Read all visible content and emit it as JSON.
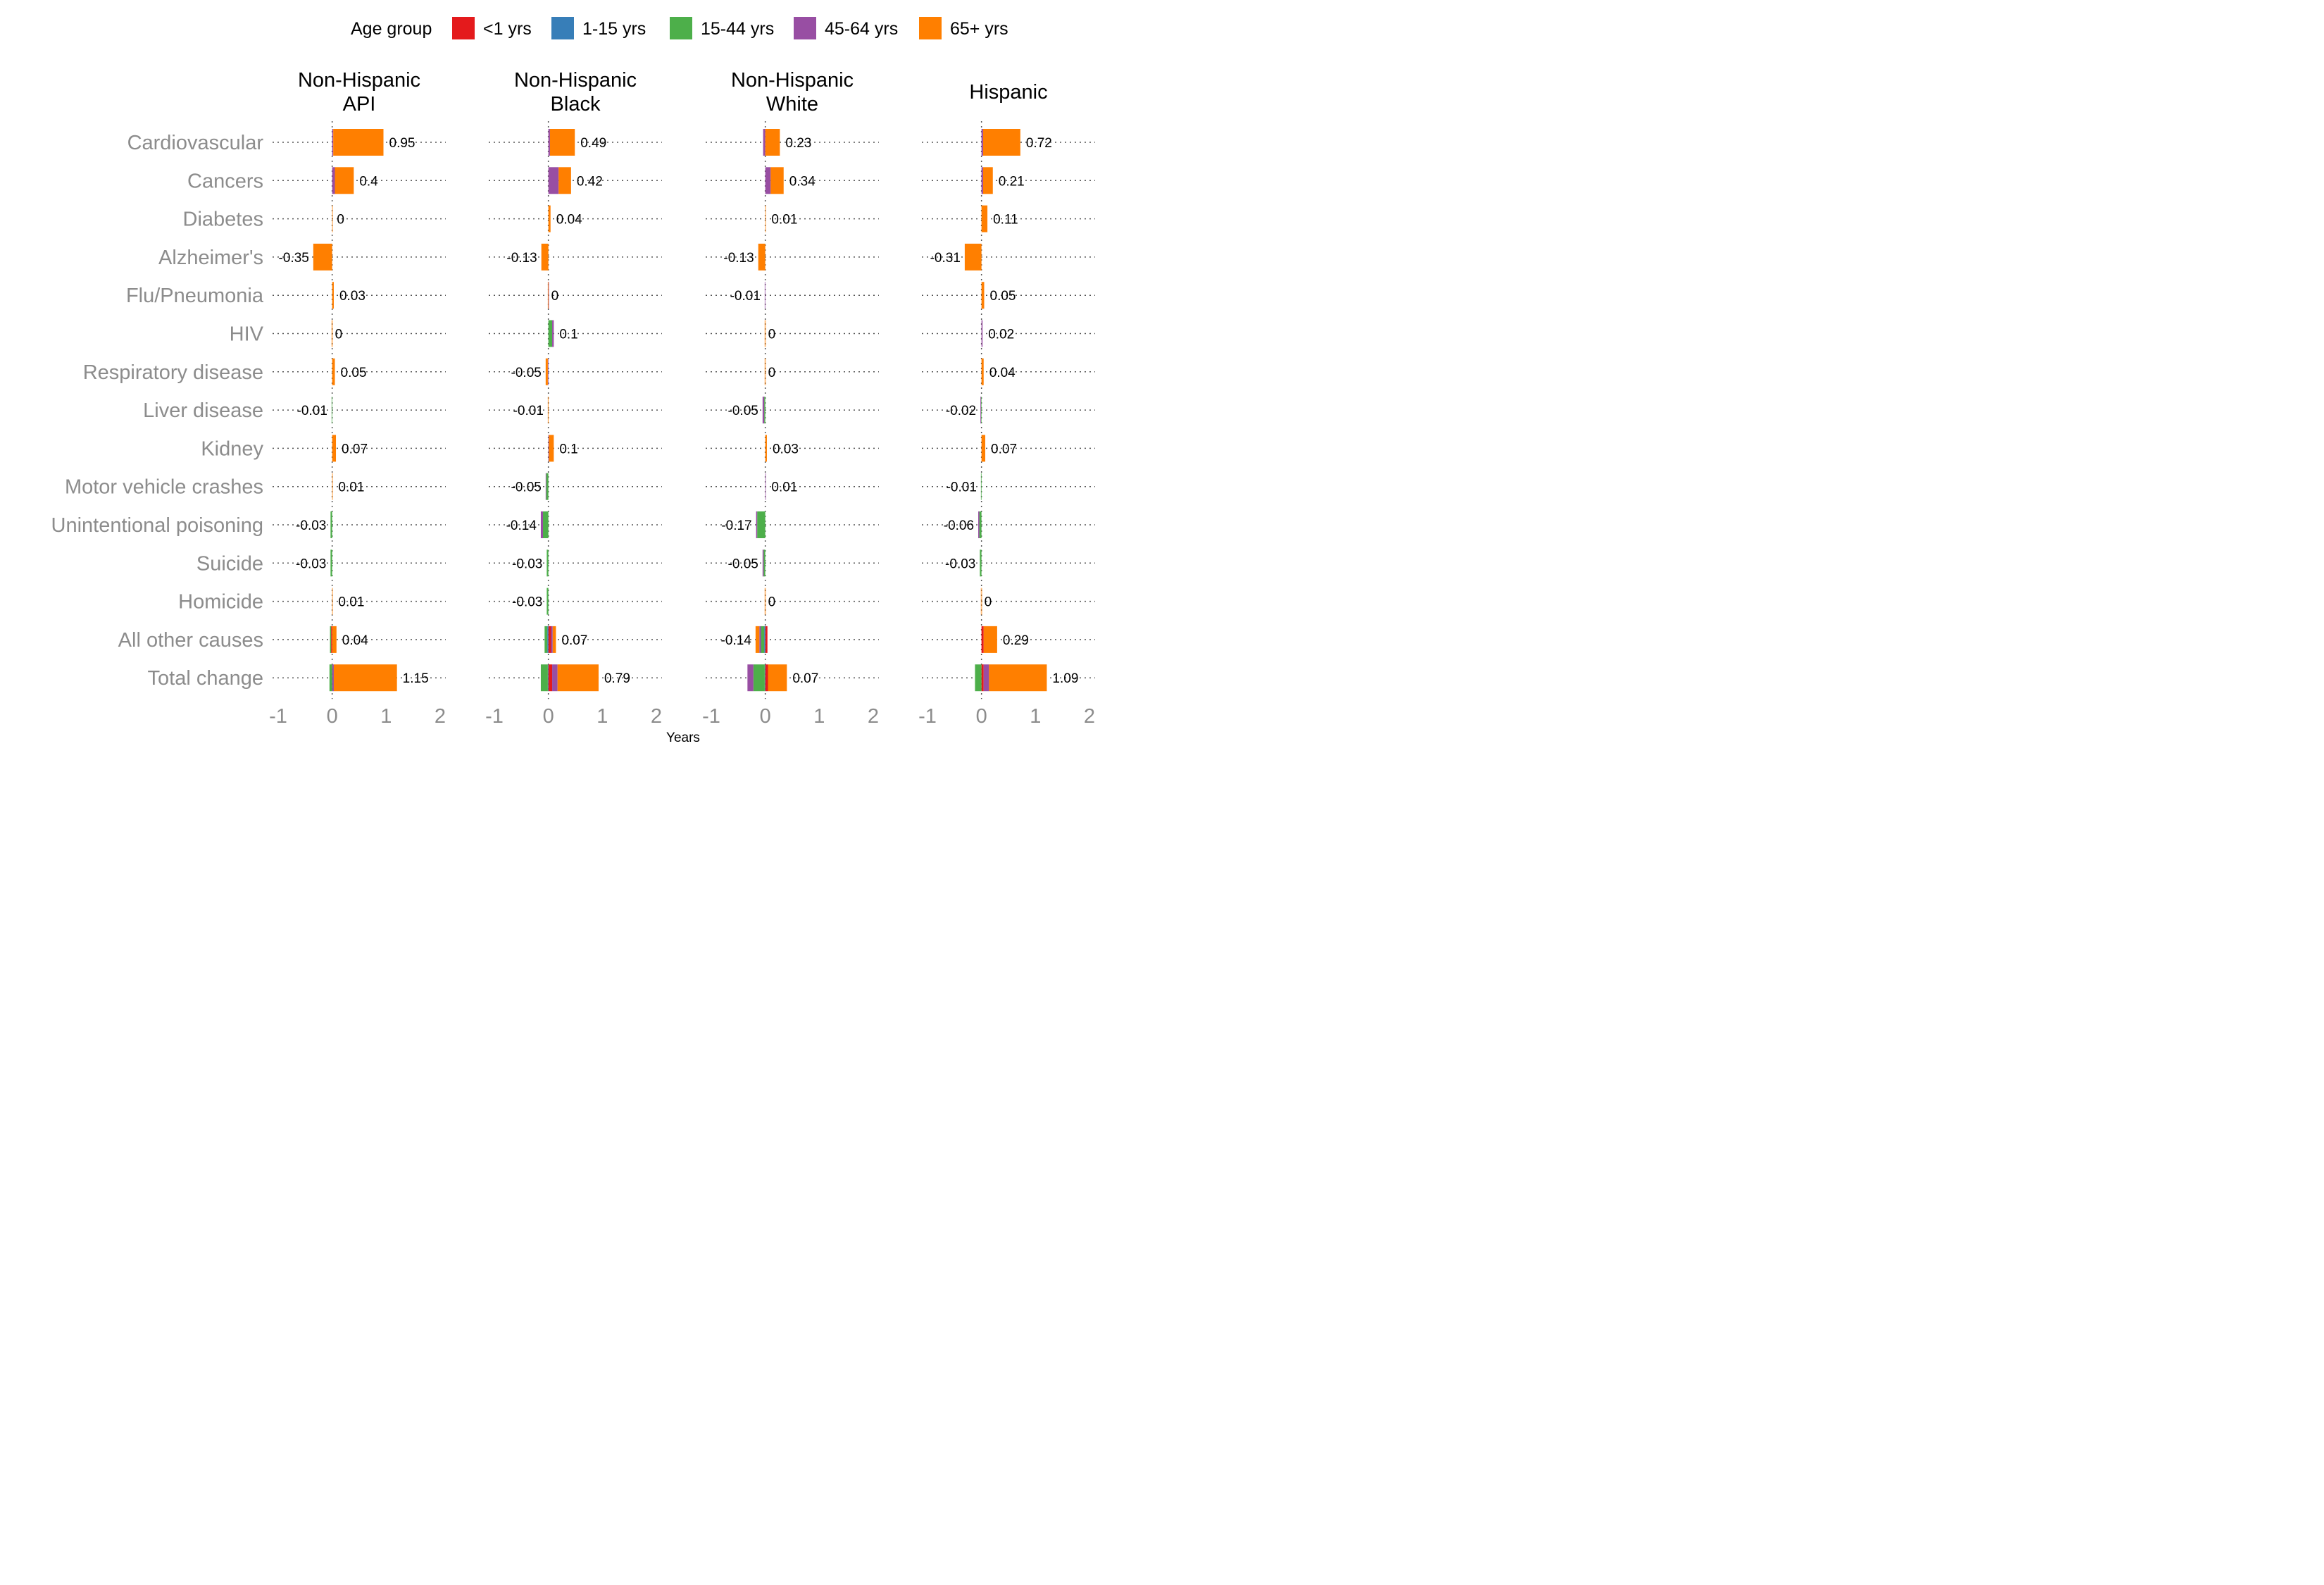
{
  "chart_data": {
    "type": "bar",
    "orientation": "horizontal",
    "stacked": true,
    "xlabel": "Years",
    "xlim": [
      -1,
      2
    ],
    "xticks": [
      -1,
      0,
      1,
      2
    ],
    "xtick_labels": [
      "-1",
      "0",
      "1",
      "2"
    ],
    "grid": "horizontal dotted gridlines at each category",
    "legend": {
      "title": "Age group",
      "position": "top",
      "entries": [
        {
          "label": "<1 yrs",
          "color": "#e41a1c"
        },
        {
          "label": "1-15 yrs",
          "color": "#377eb8"
        },
        {
          "label": "15-44 yrs",
          "color": "#4daf4a"
        },
        {
          "label": "45-64 yrs",
          "color": "#984ea3"
        },
        {
          "label": "65+ yrs",
          "color": "#ff7f00"
        }
      ]
    },
    "categories": [
      "Cardiovascular",
      "Cancers",
      "Diabetes",
      "Alzheimer's",
      "Flu/Pneumonia",
      "HIV",
      "Respiratory disease",
      "Liver disease",
      "Kidney",
      "Motor vehicle crashes",
      "Unintentional poisoning",
      "Suicide",
      "Homicide",
      "All other causes",
      "Total change"
    ],
    "facets": [
      {
        "title_lines": [
          "Non-Hispanic",
          "API"
        ],
        "totals": [
          0.95,
          0.4,
          0,
          -0.35,
          0.03,
          0,
          0.05,
          -0.01,
          0.07,
          0.01,
          -0.03,
          -0.03,
          0.01,
          0.04,
          1.15
        ],
        "total_labels": [
          "0.95",
          "0.4",
          "0",
          "-0.35",
          "0.03",
          "0",
          "0.05",
          "-0.01",
          "0.07",
          "0.01",
          "-0.03",
          "-0.03",
          "0.01",
          "0.04",
          "1.15"
        ],
        "segments": [
          [
            0,
            0,
            0,
            0.02,
            0.93
          ],
          [
            0,
            0,
            0,
            0.05,
            0.35
          ],
          [
            0,
            0,
            0,
            0,
            0.01
          ],
          [
            0,
            0,
            0,
            0,
            -0.35
          ],
          [
            0,
            0,
            0,
            0,
            0.03
          ],
          [
            0,
            0,
            0,
            0,
            0
          ],
          [
            0,
            0,
            0,
            0,
            0.05
          ],
          [
            0,
            0,
            -0.01,
            0,
            0
          ],
          [
            0,
            0,
            0,
            0,
            0.07
          ],
          [
            0,
            0,
            0,
            0,
            0.01
          ],
          [
            0,
            0,
            -0.03,
            0,
            0
          ],
          [
            0,
            0,
            -0.03,
            0,
            0
          ],
          [
            0,
            0,
            0,
            0,
            0.01
          ],
          [
            -0.02,
            0,
            -0.02,
            0,
            0.08
          ],
          [
            0,
            0,
            -0.05,
            0.03,
            1.17
          ]
        ]
      },
      {
        "title_lines": [
          "Non-Hispanic",
          "Black"
        ],
        "totals": [
          0.49,
          0.42,
          0.04,
          -0.13,
          0,
          0.1,
          -0.05,
          -0.01,
          0.1,
          -0.05,
          -0.14,
          -0.03,
          -0.03,
          0.07,
          0.79
        ],
        "total_labels": [
          "0.49",
          "0.42",
          "0.04",
          "-0.13",
          "0",
          "0.1",
          "-0.05",
          "-0.01",
          "0.1",
          "-0.05",
          "-0.14",
          "-0.03",
          "-0.03",
          "0.07",
          "0.79"
        ],
        "segments": [
          [
            0,
            0,
            0,
            0.03,
            0.46
          ],
          [
            0,
            0,
            0,
            0.19,
            0.23
          ],
          [
            0,
            0,
            0,
            0,
            0.04
          ],
          [
            0,
            0,
            0,
            0,
            -0.13
          ],
          [
            0,
            0,
            0,
            0.01,
            -0.01
          ],
          [
            0,
            0,
            0.07,
            0.03,
            0
          ],
          [
            0,
            0,
            0,
            -0.01,
            -0.04
          ],
          [
            0,
            0,
            0,
            0,
            -0.01
          ],
          [
            0,
            0,
            0,
            0.01,
            0.09
          ],
          [
            0,
            0,
            -0.04,
            -0.01,
            0
          ],
          [
            0,
            0,
            -0.1,
            -0.04,
            0
          ],
          [
            0,
            0,
            -0.03,
            0,
            0
          ],
          [
            0,
            0,
            -0.03,
            0,
            0
          ],
          [
            0.05,
            -0.02,
            -0.05,
            0.03,
            0.06
          ],
          [
            0.07,
            -0.01,
            -0.13,
            0.1,
            0.76
          ]
        ]
      },
      {
        "title_lines": [
          "Non-Hispanic",
          "White"
        ],
        "totals": [
          0.23,
          0.34,
          0.01,
          -0.13,
          -0.01,
          0,
          0,
          -0.05,
          0.03,
          0.01,
          -0.17,
          -0.05,
          0,
          -0.14,
          0.07
        ],
        "total_labels": [
          "0.23",
          "0.34",
          "0.01",
          "-0.13",
          "-0.01",
          "0",
          "0",
          "-0.05",
          "0.03",
          "0.01",
          "-0.17",
          "-0.05",
          "0",
          "-0.14",
          "0.07"
        ],
        "segments": [
          [
            0,
            0,
            0,
            -0.04,
            0.27
          ],
          [
            0,
            0,
            0,
            0.1,
            0.24
          ],
          [
            0,
            0,
            0,
            0,
            0.01
          ],
          [
            0,
            0,
            0,
            0,
            -0.13
          ],
          [
            0,
            0,
            0,
            -0.01,
            0
          ],
          [
            0,
            0,
            0,
            0,
            0
          ],
          [
            0,
            0,
            0,
            0,
            0
          ],
          [
            0,
            0,
            -0.02,
            -0.03,
            0
          ],
          [
            0,
            0,
            0,
            0,
            0.03
          ],
          [
            0,
            0,
            0,
            0.01,
            0
          ],
          [
            0,
            0,
            -0.15,
            -0.02,
            0
          ],
          [
            0,
            0,
            -0.03,
            -0.02,
            0
          ],
          [
            0,
            0,
            0,
            0,
            0
          ],
          [
            0.04,
            -0.02,
            -0.06,
            -0.03,
            -0.07
          ],
          [
            0.05,
            -0.01,
            -0.21,
            -0.11,
            0.35
          ]
        ]
      },
      {
        "title_lines": [
          "Hispanic"
        ],
        "totals": [
          0.72,
          0.21,
          0.11,
          -0.31,
          0.05,
          0.02,
          0.04,
          -0.02,
          0.07,
          -0.01,
          -0.06,
          -0.03,
          0,
          0.29,
          1.09
        ],
        "total_labels": [
          "0.72",
          "0.21",
          "0.11",
          "-0.31",
          "0.05",
          "0.02",
          "0.04",
          "-0.02",
          "0.07",
          "-0.01",
          "-0.06",
          "-0.03",
          "0",
          "0.29",
          "1.09"
        ],
        "segments": [
          [
            0,
            0,
            0,
            0.03,
            0.69
          ],
          [
            0,
            0,
            0,
            0.03,
            0.18
          ],
          [
            0,
            0,
            0,
            0,
            0.11
          ],
          [
            0,
            0,
            0,
            0,
            -0.31
          ],
          [
            0,
            0,
            0,
            0,
            0.05
          ],
          [
            0,
            0,
            0,
            0.02,
            0
          ],
          [
            0,
            0,
            0,
            0,
            0.04
          ],
          [
            0,
            0,
            -0.01,
            -0.01,
            0
          ],
          [
            0,
            0,
            0,
            0,
            0.07
          ],
          [
            0,
            0,
            -0.01,
            0,
            0
          ],
          [
            0,
            0,
            -0.04,
            -0.02,
            0
          ],
          [
            0,
            0,
            -0.03,
            0,
            0
          ],
          [
            0,
            0,
            0,
            0,
            0
          ],
          [
            0.04,
            0,
            0,
            0,
            0.25
          ],
          [
            0.04,
            0,
            -0.12,
            0.1,
            1.07
          ]
        ]
      }
    ]
  }
}
